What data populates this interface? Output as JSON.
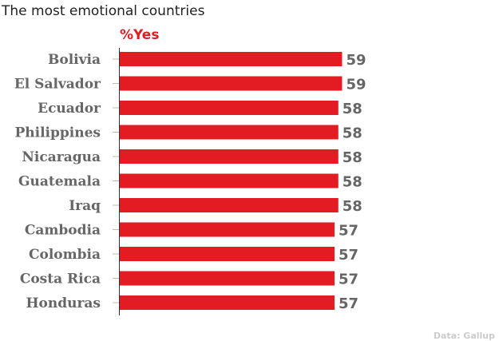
{
  "chart_data": {
    "type": "bar",
    "orientation": "horizontal",
    "title": "The most emotional countries",
    "series_label": "%Yes",
    "categories": [
      "Bolivia",
      "El Salvador",
      "Ecuador",
      "Philippines",
      "Nicaragua",
      "Guatemala",
      "Iraq",
      "Cambodia",
      "Colombia",
      "Costa Rica",
      "Honduras"
    ],
    "series": [
      {
        "values": [
          59,
          59,
          58,
          58,
          58,
          58,
          58,
          57,
          57,
          57,
          57
        ]
      }
    ],
    "xlim": [
      0,
      65
    ],
    "grid": false,
    "data_labels": true,
    "source": "Data: Gallup"
  },
  "colors": {
    "bar": "#e31b23",
    "series_label": "#e31b23",
    "category_text": "#666666",
    "value_text": "#666666",
    "axis": "#333333",
    "source_text": "#cccccc"
  }
}
